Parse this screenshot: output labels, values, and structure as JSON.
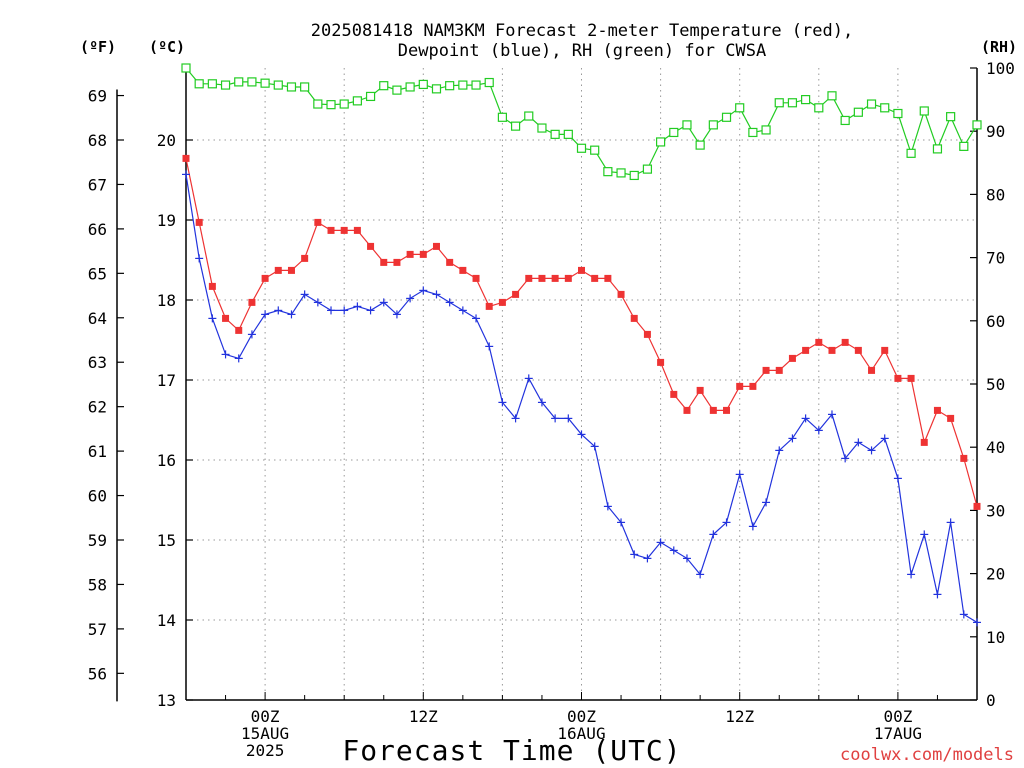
{
  "chart_data": {
    "type": "line",
    "title_line1": "2025081418 NAM3KM Forecast 2-meter Temperature (red),",
    "title_line2": "Dewpoint (blue), RH (green) for CWSA",
    "xlabel": "Forecast Time (UTC)",
    "unit_fahrenheit": "(ºF)",
    "unit_celsius": "(ºC)",
    "unit_rh": "(RH)",
    "credit": "coolwx.com/models",
    "x_range_hours": [
      -6,
      54
    ],
    "celsius_range": [
      13,
      20.9
    ],
    "rh_range": [
      0,
      100
    ],
    "fahrenheit_ticks": [
      "56",
      "57",
      "58",
      "59",
      "60",
      "61",
      "62",
      "63",
      "64",
      "65",
      "66",
      "67",
      "68",
      "69"
    ],
    "celsius_ticks": [
      "13",
      "14",
      "15",
      "16",
      "17",
      "18",
      "19",
      "20"
    ],
    "rh_ticks": [
      "0",
      "10",
      "20",
      "30",
      "40",
      "50",
      "60",
      "70",
      "80",
      "90",
      "100"
    ],
    "x_ticks": [
      {
        "hour": 0,
        "line1": "00Z",
        "line2": "15AUG",
        "line3": "2025"
      },
      {
        "hour": 12,
        "line1": "12Z",
        "line2": "",
        "line3": ""
      },
      {
        "hour": 24,
        "line1": "00Z",
        "line2": "16AUG",
        "line3": ""
      },
      {
        "hour": 36,
        "line1": "12Z",
        "line2": "",
        "line3": ""
      },
      {
        "hour": 48,
        "line1": "00Z",
        "line2": "17AUG",
        "line3": ""
      }
    ],
    "grid": true,
    "colors": {
      "temperature": "#ee3333",
      "dewpoint": "#2233dd",
      "rh": "#22cc22",
      "grid": "#999999"
    },
    "series": [
      {
        "key": "temperature",
        "color": "#ee3333",
        "marker": "filled-square",
        "values": [
          19.77,
          18.97,
          18.17,
          17.77,
          17.62,
          17.97,
          18.27,
          18.37,
          18.37,
          18.52,
          18.97,
          18.87,
          18.87,
          18.87,
          18.67,
          18.47,
          18.47,
          18.57,
          18.57,
          18.67,
          18.47,
          18.37,
          18.27,
          17.92,
          17.97,
          18.07,
          18.27,
          18.27,
          18.27,
          18.27,
          18.37,
          18.27,
          18.27,
          18.07,
          17.77,
          17.57,
          17.22,
          16.82,
          16.62,
          16.87,
          16.62,
          16.62,
          16.92,
          16.92,
          17.12,
          17.12,
          17.27,
          17.37,
          17.47,
          17.37,
          17.47,
          17.37,
          17.12,
          17.37,
          17.02,
          17.02,
          16.22,
          16.62,
          16.52,
          16.02,
          15.42
        ]
      },
      {
        "key": "dewpoint",
        "color": "#2233dd",
        "marker": "plus",
        "values": [
          19.57,
          18.52,
          17.77,
          17.32,
          17.27,
          17.57,
          17.82,
          17.87,
          17.82,
          18.07,
          17.97,
          17.87,
          17.87,
          17.92,
          17.87,
          17.97,
          17.82,
          18.02,
          18.12,
          18.07,
          17.97,
          17.87,
          17.77,
          17.42,
          16.72,
          16.52,
          17.02,
          16.72,
          16.52,
          16.52,
          16.32,
          16.17,
          15.42,
          15.22,
          14.82,
          14.77,
          14.97,
          14.87,
          14.77,
          14.57,
          15.07,
          15.22,
          15.82,
          15.17,
          15.47,
          16.12,
          16.27,
          16.52,
          16.37,
          16.57,
          16.02,
          16.22,
          16.12,
          16.27,
          15.77,
          14.57,
          15.07,
          14.32,
          15.22,
          14.07,
          13.97
        ]
      },
      {
        "key": "rh",
        "color": "#22cc22",
        "marker": "open-square",
        "values": [
          100,
          97.5,
          97.5,
          97.3,
          97.8,
          97.8,
          97.6,
          97.3,
          97,
          97,
          94.3,
          94.2,
          94.3,
          94.8,
          95.5,
          97.2,
          96.5,
          97,
          97.4,
          96.7,
          97.2,
          97.3,
          97.3,
          97.7,
          92.2,
          90.8,
          92.4,
          90.5,
          89.5,
          89.5,
          87.3,
          87,
          83.6,
          83.4,
          83,
          84,
          88.3,
          89.8,
          91,
          87.8,
          91,
          92.2,
          93.7,
          89.8,
          90.2,
          94.5,
          94.5,
          95,
          93.7,
          95.6,
          91.7,
          93,
          94.3,
          93.7,
          92.8,
          86.5,
          93.2,
          87.2,
          92.3,
          87.6,
          91
        ]
      }
    ]
  }
}
